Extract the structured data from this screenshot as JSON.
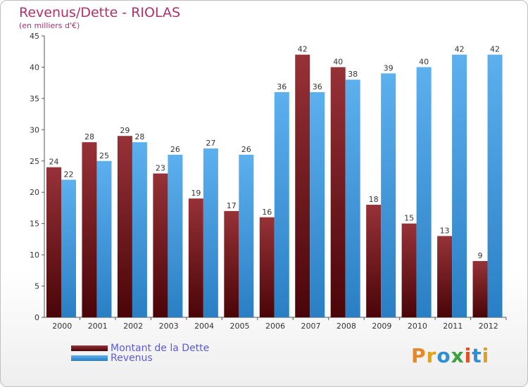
{
  "chart_data": {
    "type": "bar",
    "title": "Revenus/Dette - RIOLAS",
    "subtitle": "(en milliers d'€)",
    "categories": [
      "2000",
      "2001",
      "2002",
      "2003",
      "2004",
      "2005",
      "2006",
      "2007",
      "2008",
      "2009",
      "2010",
      "2011",
      "2012"
    ],
    "series": [
      {
        "name": "Montant de la Dette",
        "color": "#7a1a1e",
        "values": [
          24,
          28,
          29,
          23,
          19,
          17,
          16,
          42,
          40,
          18,
          15,
          13,
          9
        ]
      },
      {
        "name": "Revenus",
        "color": "#4aa3e6",
        "values": [
          22,
          25,
          28,
          26,
          27,
          26,
          36,
          36,
          38,
          39,
          40,
          42,
          42
        ]
      }
    ],
    "ylim": [
      0,
      45
    ],
    "yticks": [
      0,
      5,
      10,
      15,
      20,
      25,
      30,
      35,
      40,
      45
    ],
    "grid": false,
    "legend": "bottom-left"
  },
  "logo": {
    "text": "Proxiti"
  }
}
